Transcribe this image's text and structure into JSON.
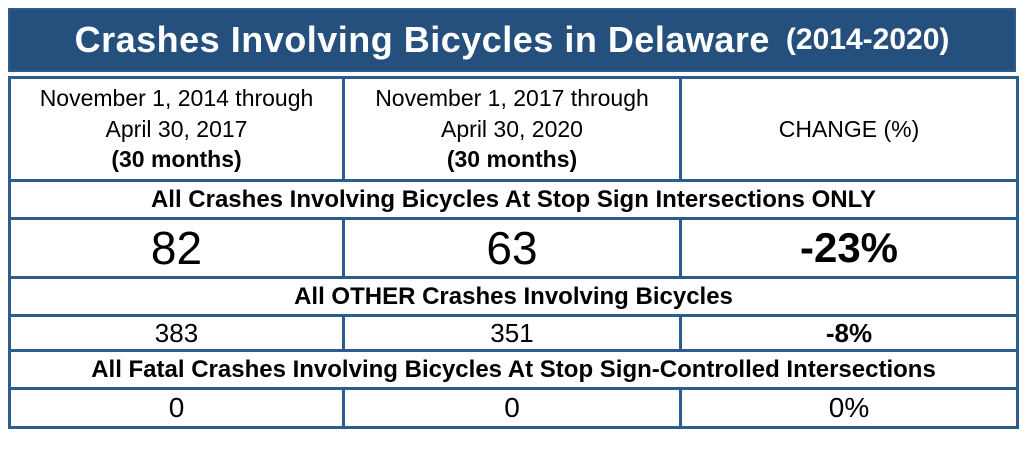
{
  "title": {
    "main": "Crashes Involving Bicycles in Delaware",
    "period": "(2014-2020)"
  },
  "table": {
    "columns": [
      {
        "line1": "November 1, 2014 through",
        "line2": "April 30, 2017",
        "line3": "(30 months)"
      },
      {
        "line1": "November 1, 2017 through",
        "line2": "April 30, 2020",
        "line3": "(30 months)"
      },
      {
        "label": "CHANGE (%)"
      }
    ],
    "sections": [
      {
        "header": "All Crashes Involving Bicycles At Stop Sign Intersections ONLY",
        "values": [
          "82",
          "63",
          "-23%"
        ]
      },
      {
        "header": "All OTHER Crashes Involving Bicycles",
        "values": [
          "383",
          "351",
          "-8%"
        ]
      },
      {
        "header": "All Fatal Crashes Involving Bicycles At Stop Sign-Controlled Intersections",
        "values": [
          "0",
          "0",
          "0%"
        ]
      }
    ]
  },
  "colors": {
    "title_bg": "#254f7c",
    "border_blue": "#2d5c8e",
    "section_gray": "#e2e2e6",
    "highlight_green": "#38761d",
    "title_text": "#ffffff",
    "body_text": "#000000"
  },
  "chart_data": {
    "type": "table",
    "title": "Crashes Involving Bicycles in Delaware (2014-2020)",
    "columns": [
      "November 1, 2014 through April 30, 2017 (30 months)",
      "November 1, 2017 through April 30, 2020 (30 months)",
      "CHANGE (%)"
    ],
    "rows": [
      {
        "section": "All Crashes Involving Bicycles At Stop Sign Intersections ONLY",
        "period1": 82,
        "period2": 63,
        "change_pct": -23,
        "highlighted": true
      },
      {
        "section": "All OTHER Crashes Involving Bicycles",
        "period1": 383,
        "period2": 351,
        "change_pct": -8,
        "highlighted": false
      },
      {
        "section": "All Fatal Crashes Involving Bicycles At Stop Sign-Controlled Intersections",
        "period1": 0,
        "period2": 0,
        "change_pct": 0,
        "highlighted": false
      }
    ]
  }
}
